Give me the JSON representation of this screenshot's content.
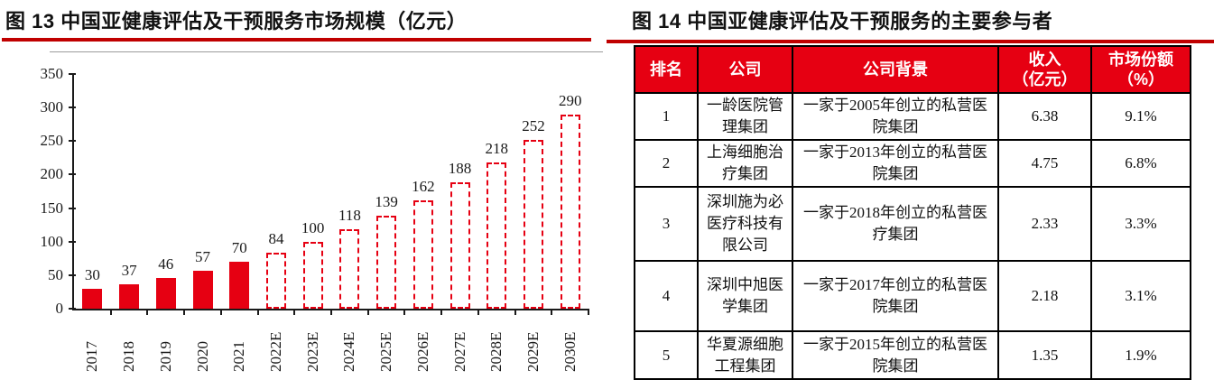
{
  "figures": {
    "left_title": "图 13 中国亚健康评估及干预服务市场规模（亿元）",
    "right_title": "图 14 中国亚健康评估及干预服务的主要参与者"
  },
  "chart_data": {
    "type": "bar",
    "title": "中国亚健康评估及干预服务市场规模（亿元）",
    "categories": [
      "2017",
      "2018",
      "2019",
      "2020",
      "2021",
      "2022E",
      "2023E",
      "2024E",
      "2025E",
      "2026E",
      "2027E",
      "2028E",
      "2029E",
      "2030E"
    ],
    "values": [
      30,
      37,
      46,
      57,
      70,
      84,
      100,
      118,
      139,
      162,
      188,
      218,
      252,
      290
    ],
    "solid_bar_count": 5,
    "ylim": [
      0,
      350
    ],
    "ytick_step": 50,
    "xlabel": "",
    "ylabel": "",
    "grid": false,
    "legend": false,
    "data_labels": true,
    "bar_color": "#e60012",
    "actual_style": "solid-fill",
    "forecast_style": "dashed-outline"
  },
  "table": {
    "columns": [
      "排名",
      "公司",
      "公司背景",
      "收入\n（亿元）",
      "市场份额\n（%）"
    ],
    "rows": [
      [
        "1",
        "一龄医院管理集团",
        "一家于2005年创立的私营医院集团",
        "6.38",
        "9.1%"
      ],
      [
        "2",
        "上海细胞治疗集团",
        "一家于2013年创立的私营医院集团",
        "4.75",
        "6.8%"
      ],
      [
        "3",
        "深圳施为必医疗科技有限公司",
        "一家于2018年创立的私营医疗集团",
        "2.33",
        "3.3%"
      ],
      [
        "4",
        "深圳中旭医学集团",
        "一家于2017年创立的私营医院集团",
        "2.18",
        "3.1%"
      ],
      [
        "5",
        "华夏源细胞工程集团",
        "一家于2015年创立的私营医院集团",
        "1.35",
        "1.9%"
      ]
    ],
    "header_bg": "#e60012",
    "header_text_color": "#ffffff"
  },
  "colors": {
    "accent_red": "#e60012",
    "rule_red": "#c00000",
    "axis_black": "#1a1a1a"
  }
}
